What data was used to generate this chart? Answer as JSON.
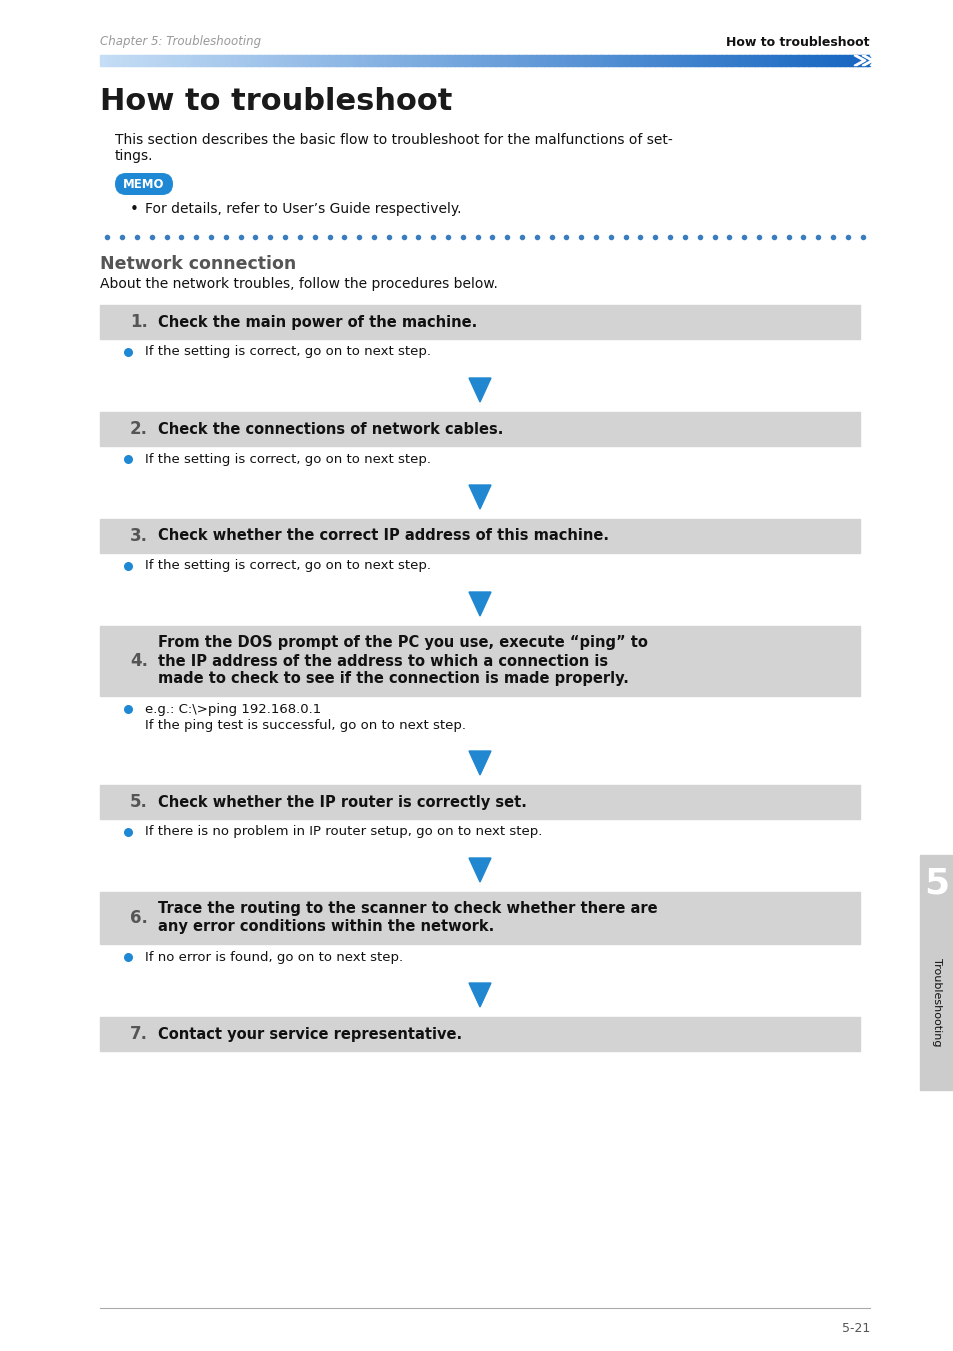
{
  "page_bg": "#ffffff",
  "header_left": "Chapter 5: Troubleshooting",
  "header_right": "How to troubleshoot",
  "main_title": "How to troubleshoot",
  "intro_text1": "This section describes the basic flow to troubleshoot for the malfunctions of set-",
  "intro_text2": "tings.",
  "memo_bg": "#1e88d4",
  "memo_text": "MEMO",
  "memo_bullet": "For details, refer to User’s Guide respectively.",
  "dots_color": "#3a7dbf",
  "section_title": "Network connection",
  "section_intro": "About the network troubles, follow the procedures below.",
  "steps": [
    {
      "number": "1.",
      "title": "Check the main power of the machine.",
      "title_lines": 1,
      "bullets": [
        [
          "If the setting is correct, go on to next step."
        ]
      ],
      "has_arrow": true
    },
    {
      "number": "2.",
      "title": "Check the connections of network cables.",
      "title_lines": 1,
      "bullets": [
        [
          "If the setting is correct, go on to next step."
        ]
      ],
      "has_arrow": true
    },
    {
      "number": "3.",
      "title": "Check whether the correct IP address of this machine.",
      "title_lines": 1,
      "bullets": [
        [
          "If the setting is correct, go on to next step."
        ]
      ],
      "has_arrow": true
    },
    {
      "number": "4.",
      "title": "From the DOS prompt of the PC you use, execute “ping” to\nthe IP address of the address to which a connection is\nmade to check to see if the connection is made properly.",
      "title_lines": 3,
      "bullets": [
        [
          "e.g.: C:\\>ping 192.168.0.1",
          "If the ping test is successful, go on to next step."
        ]
      ],
      "has_arrow": true
    },
    {
      "number": "5.",
      "title": "Check whether the IP router is correctly set.",
      "title_lines": 1,
      "bullets": [
        [
          "If there is no problem in IP router setup, go on to next step."
        ]
      ],
      "has_arrow": true
    },
    {
      "number": "6.",
      "title": "Trace the routing to the scanner to check whether there are\nany error conditions within the network.",
      "title_lines": 2,
      "bullets": [
        [
          "If no error is found, go on to next step."
        ]
      ],
      "has_arrow": true
    },
    {
      "number": "7.",
      "title": "Contact your service representative.",
      "title_lines": 1,
      "bullets": [],
      "has_arrow": false
    }
  ],
  "step_bg": "#d3d3d3",
  "arrow_color": "#2187d0",
  "bullet_dot_color": "#1e88d4",
  "sidebar_bg": "#cccccc",
  "sidebar_text": "Troubleshooting",
  "sidebar_number": "5",
  "page_number": "5-21",
  "footer_line_color": "#aaaaaa"
}
